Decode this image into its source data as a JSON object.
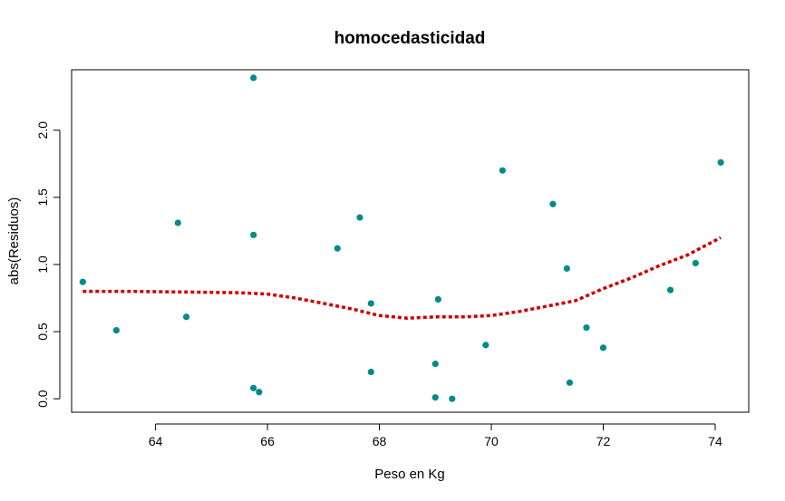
{
  "chart_data": {
    "type": "scatter",
    "title": "homocedasticidad",
    "xlabel": "Peso en Kg",
    "ylabel": "abs(Residuos)",
    "xlim": [
      62.5,
      74.6
    ],
    "ylim": [
      -0.1,
      2.45
    ],
    "xticks": [
      64,
      66,
      68,
      70,
      72,
      74
    ],
    "yticks": [
      0.0,
      0.5,
      1.0,
      1.5,
      2.0
    ],
    "ytick_labels": [
      "0.0",
      "0.5",
      "1.0",
      "1.5",
      "2.0"
    ],
    "grid": false,
    "colors": {
      "points": "#008B8B",
      "smooth": "#CC0000",
      "axes": "#000000"
    },
    "points": [
      {
        "x": 62.7,
        "y": 0.87
      },
      {
        "x": 63.3,
        "y": 0.51
      },
      {
        "x": 64.4,
        "y": 1.31
      },
      {
        "x": 64.55,
        "y": 0.61
      },
      {
        "x": 65.75,
        "y": 2.39
      },
      {
        "x": 65.75,
        "y": 1.22
      },
      {
        "x": 65.75,
        "y": 0.08
      },
      {
        "x": 65.85,
        "y": 0.05
      },
      {
        "x": 67.25,
        "y": 1.12
      },
      {
        "x": 67.65,
        "y": 1.35
      },
      {
        "x": 67.85,
        "y": 0.71
      },
      {
        "x": 67.85,
        "y": 0.2
      },
      {
        "x": 69.0,
        "y": 0.26
      },
      {
        "x": 69.0,
        "y": 0.01
      },
      {
        "x": 69.05,
        "y": 0.74
      },
      {
        "x": 69.3,
        "y": 0.0
      },
      {
        "x": 69.9,
        "y": 0.4
      },
      {
        "x": 70.2,
        "y": 1.7
      },
      {
        "x": 71.1,
        "y": 1.45
      },
      {
        "x": 71.35,
        "y": 0.97
      },
      {
        "x": 71.4,
        "y": 0.12
      },
      {
        "x": 71.7,
        "y": 0.53
      },
      {
        "x": 72.0,
        "y": 0.38
      },
      {
        "x": 73.2,
        "y": 0.81
      },
      {
        "x": 73.65,
        "y": 1.01
      },
      {
        "x": 74.1,
        "y": 1.76
      }
    ],
    "smooth_line": {
      "x": [
        62.7,
        63.5,
        64.5,
        65.5,
        66.0,
        66.5,
        67.0,
        67.5,
        68.0,
        68.5,
        69.0,
        69.5,
        70.0,
        70.5,
        71.0,
        71.5,
        72.0,
        72.5,
        73.0,
        73.5,
        74.1
      ],
      "y": [
        0.8,
        0.8,
        0.795,
        0.79,
        0.78,
        0.75,
        0.71,
        0.67,
        0.62,
        0.6,
        0.61,
        0.61,
        0.62,
        0.65,
        0.69,
        0.73,
        0.82,
        0.9,
        0.99,
        1.07,
        1.2
      ]
    }
  }
}
